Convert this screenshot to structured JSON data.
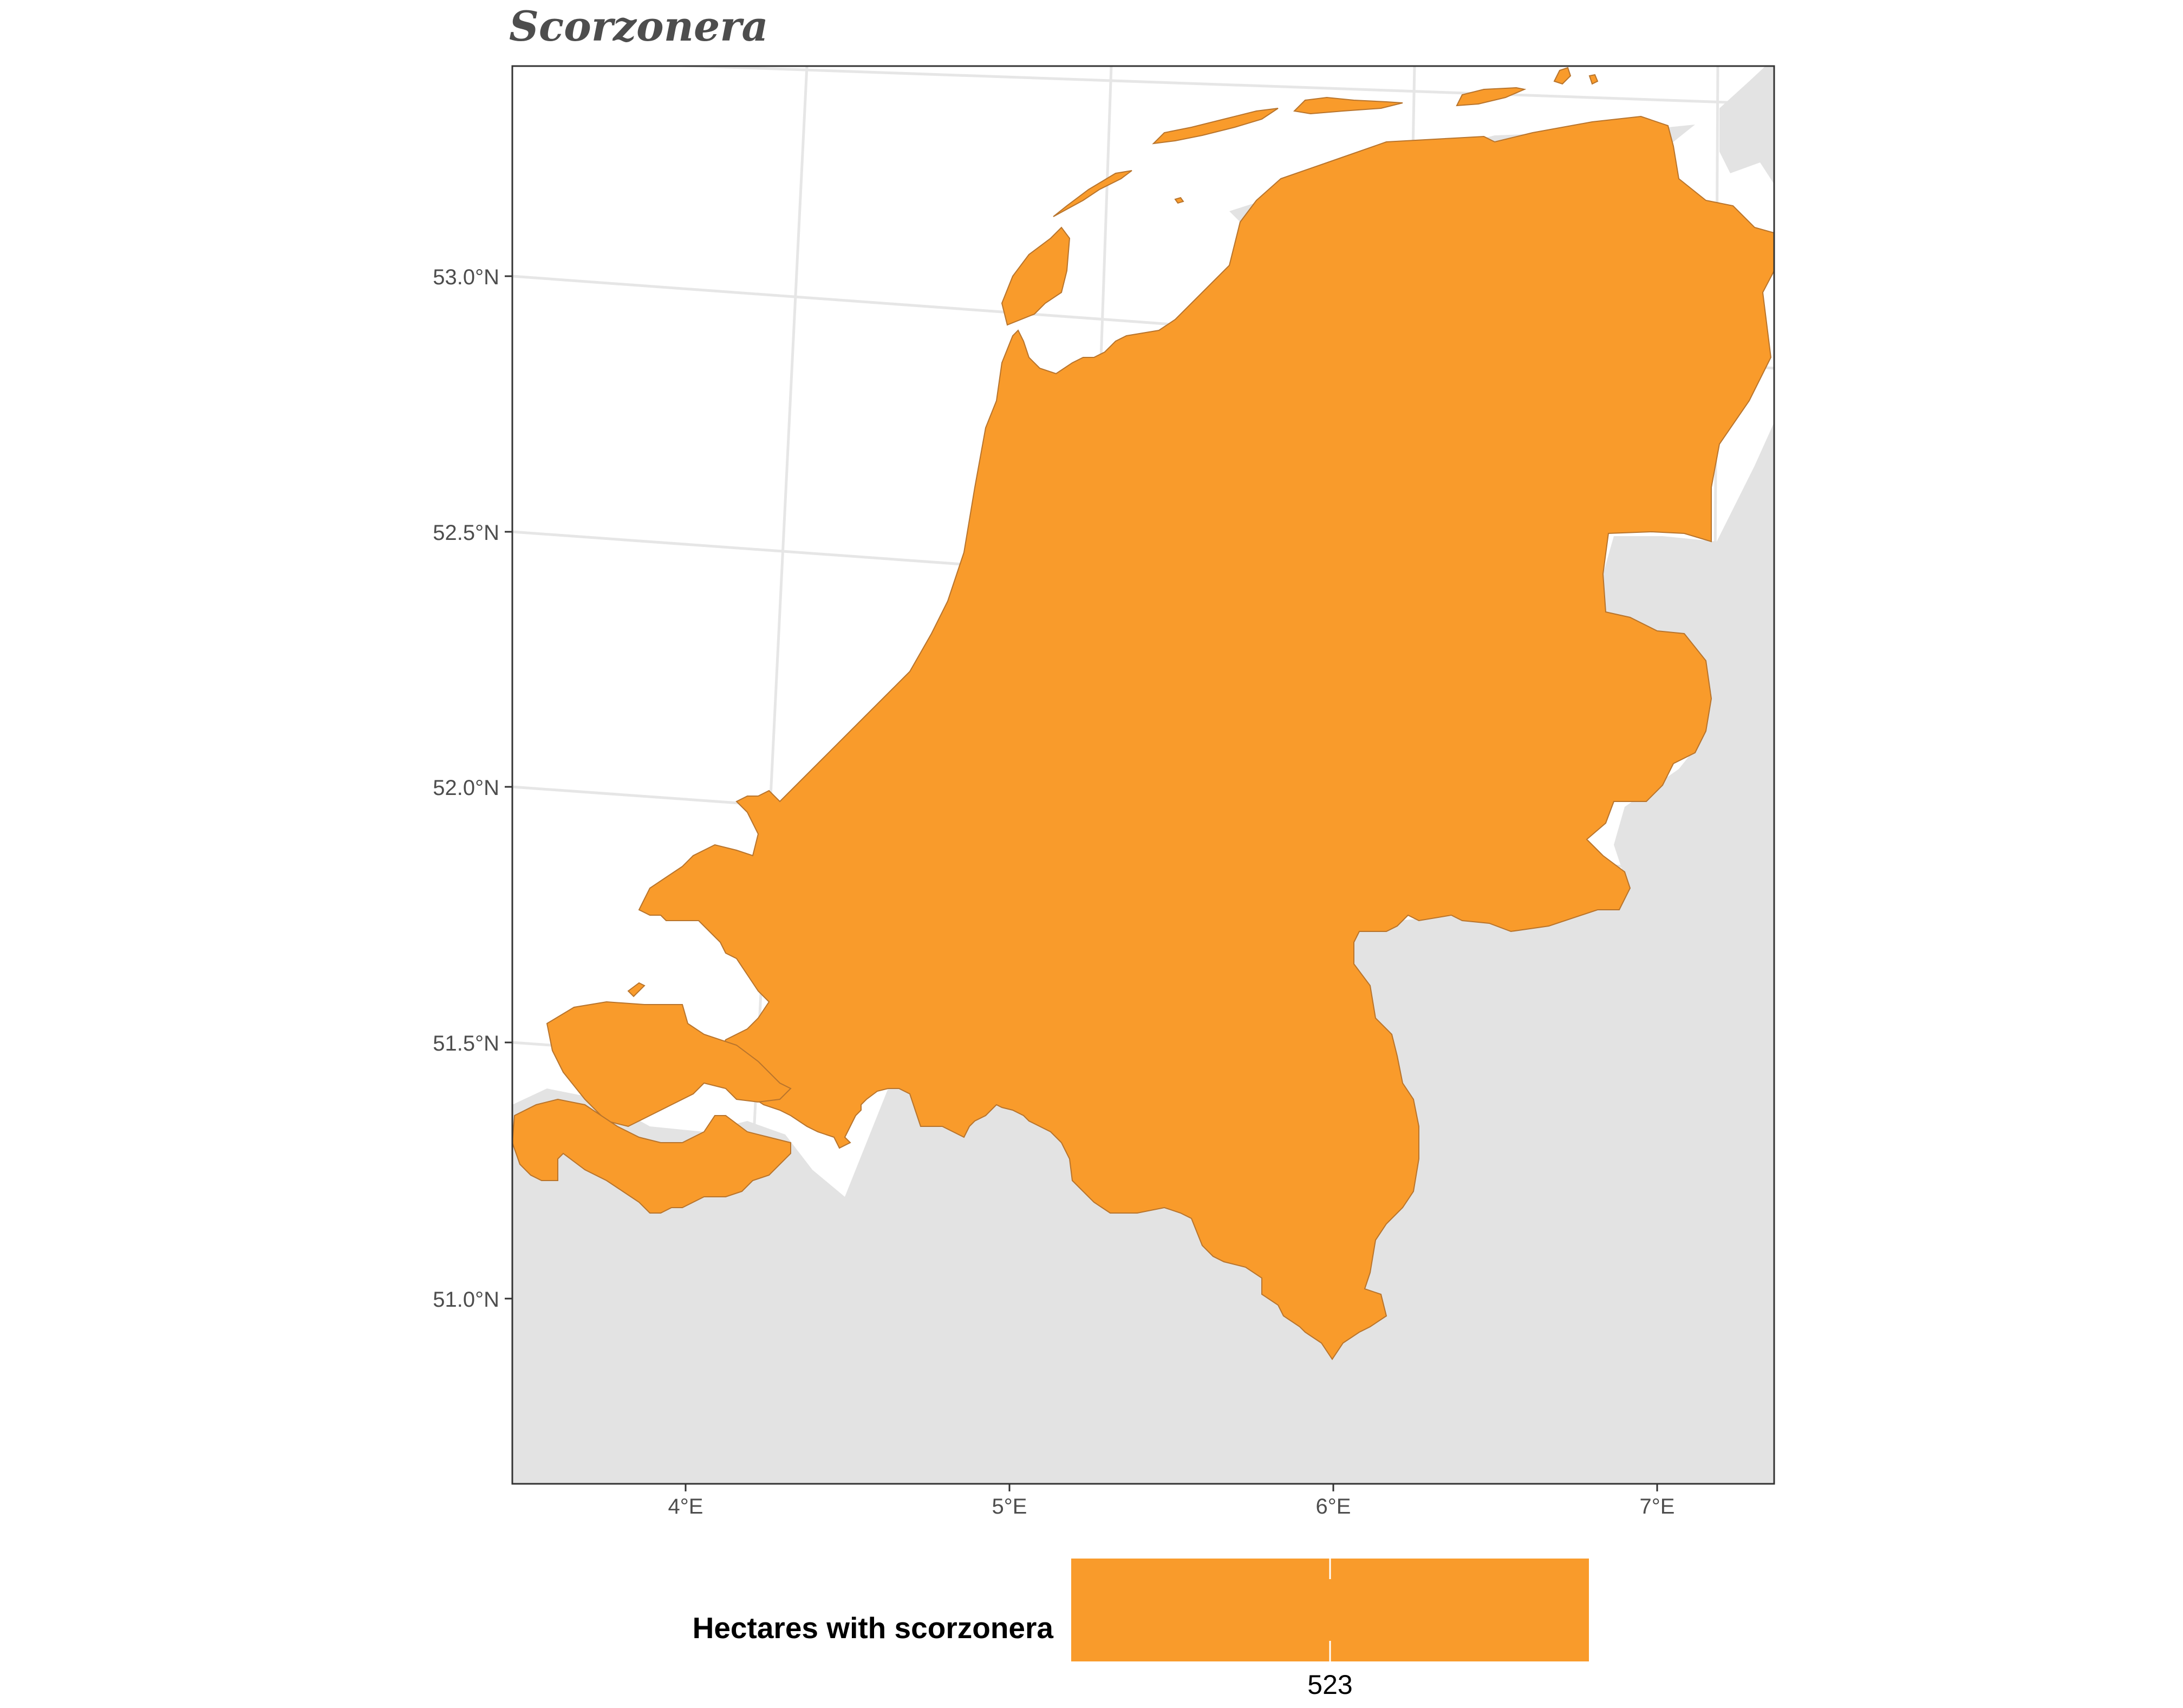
{
  "title": "Scorzonera",
  "axes": {
    "lat_ticks": [
      {
        "value": 53.0,
        "label": "53.0°N"
      },
      {
        "value": 52.5,
        "label": "52.5°N"
      },
      {
        "value": 52.0,
        "label": "52.0°N"
      },
      {
        "value": 51.5,
        "label": "51.5°N"
      },
      {
        "value": 51.0,
        "label": "51.0°N"
      }
    ],
    "lon_ticks": [
      {
        "value": 4,
        "label": "4°E"
      },
      {
        "value": 5,
        "label": "5°E"
      },
      {
        "value": 6,
        "label": "6°E"
      },
      {
        "value": 7,
        "label": "7°E"
      }
    ]
  },
  "legend": {
    "title": "Hectares with scorzonera",
    "value_label": "523",
    "value": 523
  },
  "colors": {
    "fill": "#F99B2B",
    "land_background": "#E3E3E3",
    "sea": "#FFFFFF",
    "grid": "#E6E6E6",
    "title": "#4D4D4D",
    "axis_text": "#4D4D4D"
  },
  "map_region": {
    "name": "Netherlands",
    "fill_value": 523
  }
}
